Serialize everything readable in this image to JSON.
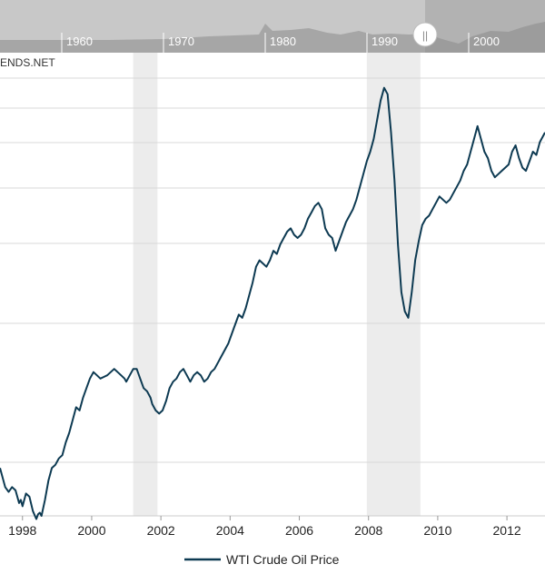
{
  "source_label": "ENDS.NET",
  "navigator": {
    "ticks": [
      "1960",
      "1970",
      "1980",
      "1990",
      "2000"
    ],
    "handle_symbol": "||"
  },
  "colors": {
    "line": "#0d3a52",
    "recession": "#ececec",
    "navigator_bg": "#c8c8c8",
    "navigator_area": "#a6a6a6",
    "navigator_selected": "#8a8a8a"
  },
  "chart_data": {
    "type": "line",
    "title": "",
    "xlabel": "",
    "ylabel": "",
    "xlim": [
      1997.35,
      2013.1
    ],
    "ylim": [
      10,
      155
    ],
    "x_ticks": [
      "1998",
      "2000",
      "2002",
      "2004",
      "2006",
      "2008",
      "2010",
      "2012"
    ],
    "grid": true,
    "legend_position": "bottom",
    "recessions": [
      [
        2001.2,
        2001.9
      ],
      [
        2007.95,
        2009.5
      ]
    ],
    "series": [
      {
        "name": "WTI Crude Oil Price",
        "points": [
          [
            1997.35,
            25
          ],
          [
            1997.5,
            19
          ],
          [
            1997.6,
            17.5
          ],
          [
            1997.7,
            19
          ],
          [
            1997.8,
            18
          ],
          [
            1997.9,
            14
          ],
          [
            1997.95,
            15
          ],
          [
            1998.0,
            13
          ],
          [
            1998.1,
            17
          ],
          [
            1998.2,
            16
          ],
          [
            1998.3,
            11.5
          ],
          [
            1998.4,
            9
          ],
          [
            1998.45,
            10.5
          ],
          [
            1998.5,
            11
          ],
          [
            1998.55,
            10
          ],
          [
            1998.65,
            15
          ],
          [
            1998.75,
            21
          ],
          [
            1998.85,
            25
          ],
          [
            1998.95,
            26
          ],
          [
            1999.05,
            28
          ],
          [
            1999.15,
            29
          ],
          [
            1999.25,
            33
          ],
          [
            1999.35,
            36
          ],
          [
            1999.45,
            40
          ],
          [
            1999.55,
            44
          ],
          [
            1999.65,
            43
          ],
          [
            1999.75,
            47
          ],
          [
            1999.85,
            50
          ],
          [
            1999.95,
            53
          ],
          [
            2000.05,
            55
          ],
          [
            2000.15,
            54
          ],
          [
            2000.25,
            53
          ],
          [
            2000.35,
            53.5
          ],
          [
            2000.45,
            54
          ],
          [
            2000.55,
            55
          ],
          [
            2000.65,
            56
          ],
          [
            2000.75,
            55
          ],
          [
            2000.85,
            54
          ],
          [
            2000.95,
            53
          ],
          [
            2001.0,
            52
          ],
          [
            2001.2,
            56
          ],
          [
            2001.3,
            56
          ],
          [
            2001.4,
            53
          ],
          [
            2001.5,
            50
          ],
          [
            2001.6,
            49
          ],
          [
            2001.7,
            47
          ],
          [
            2001.75,
            45
          ],
          [
            2001.85,
            43
          ],
          [
            2001.95,
            42
          ],
          [
            2002.05,
            43
          ],
          [
            2002.15,
            46
          ],
          [
            2002.25,
            50
          ],
          [
            2002.35,
            52
          ],
          [
            2002.45,
            53
          ],
          [
            2002.55,
            55
          ],
          [
            2002.65,
            56
          ],
          [
            2002.75,
            54
          ],
          [
            2002.85,
            52
          ],
          [
            2002.95,
            54
          ],
          [
            2003.05,
            55
          ],
          [
            2003.15,
            54
          ],
          [
            2003.25,
            52
          ],
          [
            2003.35,
            53
          ],
          [
            2003.45,
            55
          ],
          [
            2003.55,
            56
          ],
          [
            2003.65,
            58
          ],
          [
            2003.75,
            60
          ],
          [
            2003.85,
            62
          ],
          [
            2003.95,
            64
          ],
          [
            2004.05,
            67
          ],
          [
            2004.15,
            70
          ],
          [
            2004.25,
            73
          ],
          [
            2004.35,
            72
          ],
          [
            2004.45,
            75
          ],
          [
            2004.55,
            79
          ],
          [
            2004.65,
            83
          ],
          [
            2004.75,
            88
          ],
          [
            2004.85,
            90
          ],
          [
            2004.95,
            89
          ],
          [
            2005.05,
            88
          ],
          [
            2005.15,
            90
          ],
          [
            2005.25,
            93
          ],
          [
            2005.35,
            92
          ],
          [
            2005.45,
            95
          ],
          [
            2005.55,
            97
          ],
          [
            2005.65,
            99
          ],
          [
            2005.75,
            100
          ],
          [
            2005.85,
            98
          ],
          [
            2005.95,
            97
          ],
          [
            2006.05,
            98
          ],
          [
            2006.15,
            100
          ],
          [
            2006.25,
            103
          ],
          [
            2006.35,
            105
          ],
          [
            2006.45,
            107
          ],
          [
            2006.55,
            108
          ],
          [
            2006.65,
            106
          ],
          [
            2006.75,
            100
          ],
          [
            2006.85,
            98
          ],
          [
            2006.95,
            97
          ],
          [
            2007.05,
            93
          ],
          [
            2007.15,
            96
          ],
          [
            2007.25,
            99
          ],
          [
            2007.35,
            102
          ],
          [
            2007.45,
            104
          ],
          [
            2007.55,
            106
          ],
          [
            2007.65,
            109
          ],
          [
            2007.75,
            113
          ],
          [
            2007.85,
            117
          ],
          [
            2007.95,
            121
          ],
          [
            2008.05,
            124
          ],
          [
            2008.15,
            128
          ],
          [
            2008.25,
            134
          ],
          [
            2008.35,
            140
          ],
          [
            2008.45,
            144
          ],
          [
            2008.55,
            142
          ],
          [
            2008.65,
            130
          ],
          [
            2008.75,
            115
          ],
          [
            2008.85,
            95
          ],
          [
            2008.95,
            80
          ],
          [
            2009.05,
            74
          ],
          [
            2009.15,
            72
          ],
          [
            2009.25,
            80
          ],
          [
            2009.35,
            90
          ],
          [
            2009.45,
            96
          ],
          [
            2009.55,
            101
          ],
          [
            2009.65,
            103
          ],
          [
            2009.75,
            104
          ],
          [
            2009.85,
            106
          ],
          [
            2009.95,
            108
          ],
          [
            2010.05,
            110
          ],
          [
            2010.15,
            109
          ],
          [
            2010.25,
            108
          ],
          [
            2010.35,
            109
          ],
          [
            2010.45,
            111
          ],
          [
            2010.55,
            113
          ],
          [
            2010.65,
            115
          ],
          [
            2010.75,
            118
          ],
          [
            2010.85,
            120
          ],
          [
            2010.95,
            124
          ],
          [
            2011.05,
            128
          ],
          [
            2011.15,
            132
          ],
          [
            2011.25,
            128
          ],
          [
            2011.35,
            124
          ],
          [
            2011.45,
            122
          ],
          [
            2011.55,
            118
          ],
          [
            2011.65,
            116
          ],
          [
            2011.75,
            117
          ],
          [
            2011.85,
            118
          ],
          [
            2011.95,
            119
          ],
          [
            2012.05,
            120
          ],
          [
            2012.15,
            124
          ],
          [
            2012.25,
            126
          ],
          [
            2012.35,
            122
          ],
          [
            2012.45,
            119
          ],
          [
            2012.55,
            118
          ],
          [
            2012.65,
            121
          ],
          [
            2012.75,
            124
          ],
          [
            2012.85,
            123
          ],
          [
            2012.95,
            127
          ],
          [
            2013.1,
            130
          ]
        ]
      }
    ]
  }
}
